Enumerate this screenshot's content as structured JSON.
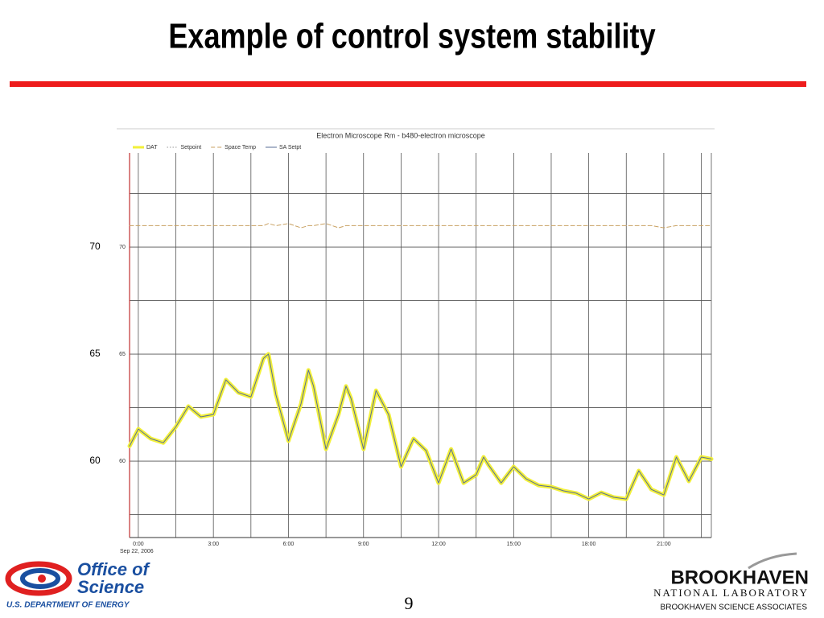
{
  "slide": {
    "title": "Example of control system stability",
    "page_number": "9",
    "left_logo": {
      "line1": "Office of",
      "line2": "Science",
      "line3": "U.S. DEPARTMENT OF ENERGY"
    },
    "right_logo": {
      "line1": "BROOKHAVEN",
      "line2": "NATIONAL LABORATORY",
      "line3": "BROOKHAVEN SCIENCE ASSOCIATES"
    }
  },
  "chart_data": {
    "type": "line",
    "title": "Electron Microscope Rm - b480-electron microscope",
    "subtitle": "Sep 22, 2006",
    "x": [
      -0.35,
      0,
      0.5,
      1,
      1.5,
      2,
      2.5,
      3,
      3.5,
      4,
      4.5,
      5,
      5.2,
      5.5,
      6,
      6.5,
      6.8,
      7,
      7.5,
      8,
      8.3,
      8.5,
      9,
      9.5,
      10,
      10.5,
      11,
      11.5,
      12,
      12.5,
      13,
      13.5,
      13.8,
      14,
      14.5,
      15,
      15.5,
      16,
      16.5,
      17,
      17.5,
      18,
      18.5,
      19,
      19.5,
      20,
      20.5,
      21,
      21.5,
      22,
      22.5,
      22.9
    ],
    "series": [
      {
        "name": "DAT",
        "color": "#f2f03a",
        "style": "solid",
        "line_width": 5,
        "values": [
          60.7,
          61.5,
          61.05,
          60.86,
          61.6,
          62.56,
          62.07,
          62.18,
          63.8,
          63.2,
          63.0,
          64.8,
          65.0,
          63.1,
          60.94,
          62.67,
          64.25,
          63.5,
          60.56,
          62.18,
          63.5,
          62.93,
          60.56,
          63.3,
          62.18,
          59.74,
          61.05,
          60.49,
          58.98,
          60.56,
          58.98,
          59.36,
          60.19,
          59.81,
          58.98,
          59.74,
          59.17,
          58.87,
          58.8,
          58.61,
          58.5,
          58.23,
          58.53,
          58.31,
          58.23,
          59.55,
          58.68,
          58.42,
          60.19,
          59.06,
          60.19,
          60.1
        ]
      },
      {
        "name": "Setpoint",
        "color": "#999999",
        "style": "dotted",
        "line_width": 1,
        "values": [
          null,
          null,
          null,
          null,
          null,
          null,
          null,
          null,
          null,
          null,
          null,
          null,
          null,
          null,
          null,
          null,
          null,
          null,
          null,
          null,
          null,
          null,
          null,
          null,
          null,
          null,
          null,
          null,
          null,
          null,
          null,
          null,
          null,
          null,
          null,
          null,
          null,
          null,
          null,
          null,
          null,
          null,
          null,
          null,
          null,
          null,
          null,
          null,
          null,
          null,
          null,
          null
        ]
      },
      {
        "name": "Space Temp",
        "color": "#c8a060",
        "style": "dashed",
        "line_width": 1,
        "values": [
          71.0,
          71.0,
          71.0,
          71.0,
          71.0,
          71.0,
          71.0,
          71.0,
          71.0,
          71.0,
          71.0,
          71.0,
          71.1,
          71.0,
          71.1,
          70.9,
          71.0,
          71.0,
          71.1,
          70.9,
          71.0,
          71.0,
          71.0,
          71.0,
          71.0,
          71.0,
          71.0,
          71.0,
          71.0,
          71.0,
          71.0,
          71.0,
          71.0,
          71.0,
          71.0,
          71.0,
          71.0,
          71.0,
          71.0,
          71.0,
          71.0,
          71.0,
          71.0,
          71.0,
          71.0,
          71.0,
          71.0,
          70.9,
          71.0,
          71.0,
          71.0,
          71.0
        ]
      },
      {
        "name": "SA Setpt",
        "color": "#5a6e96",
        "style": "solid",
        "line_width": 1,
        "values": [
          60.7,
          61.5,
          61.05,
          60.86,
          61.6,
          62.56,
          62.07,
          62.18,
          63.8,
          63.2,
          63.0,
          64.8,
          65.0,
          63.1,
          60.94,
          62.67,
          64.25,
          63.5,
          60.56,
          62.18,
          63.5,
          62.93,
          60.56,
          63.3,
          62.18,
          59.74,
          61.05,
          60.49,
          58.98,
          60.56,
          58.98,
          59.36,
          60.19,
          59.81,
          58.98,
          59.74,
          59.17,
          58.87,
          58.8,
          58.61,
          58.5,
          58.23,
          58.53,
          58.31,
          58.23,
          59.55,
          58.68,
          58.42,
          60.19,
          59.06,
          60.19,
          60.1
        ]
      }
    ],
    "xlim": [
      -0.35,
      22.9
    ],
    "xticks": [
      {
        "value": 0,
        "label": "0:00"
      },
      {
        "value": 3,
        "label": "3:00"
      },
      {
        "value": 6,
        "label": "6:00"
      },
      {
        "value": 9,
        "label": "9:00"
      },
      {
        "value": 12,
        "label": "12:00"
      },
      {
        "value": 15,
        "label": "15:00"
      },
      {
        "value": 18,
        "label": "18:00"
      },
      {
        "value": 21,
        "label": "21:00"
      }
    ],
    "xgrid": [
      1.5,
      4.5,
      7.5,
      10.5,
      13.5,
      16.5,
      19.5,
      22.5
    ],
    "ylim": [
      56.43,
      74.4
    ],
    "yticks": [
      60,
      65,
      70
    ],
    "ygrid": [
      57.5,
      62.5,
      67.5,
      72.5
    ],
    "grid": true
  }
}
